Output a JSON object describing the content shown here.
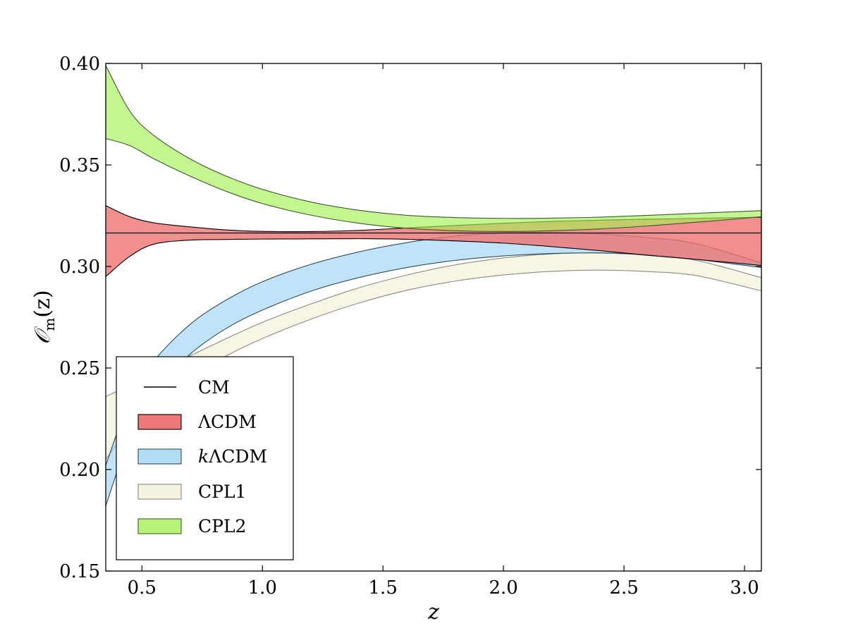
{
  "chart_data": {
    "type": "area",
    "xlabel": "z",
    "ylabel": "𝒪",
    "ylabel_sub": "m",
    "ylabel_tail": "(z)",
    "xlim": [
      0.35,
      3.07
    ],
    "ylim": [
      0.15,
      0.4
    ],
    "xticks": [
      0.5,
      1.0,
      1.5,
      2.0,
      2.5,
      3.0
    ],
    "xtick_labels": [
      "0.5",
      "1.0",
      "1.5",
      "2.0",
      "2.5",
      "3.0"
    ],
    "yticks": [
      0.15,
      0.2,
      0.25,
      0.3,
      0.35,
      0.4
    ],
    "ytick_labels": [
      "0.15",
      "0.20",
      "0.25",
      "0.30",
      "0.35",
      "0.40"
    ],
    "grid": false,
    "legend_position": "lower-left",
    "x": [
      0.35,
      0.45,
      0.55,
      0.7,
      0.85,
      1.0,
      1.2,
      1.4,
      1.6,
      1.8,
      2.0,
      2.2,
      2.4,
      2.6,
      2.8,
      3.07
    ],
    "cm_value": 0.3165,
    "series": [
      {
        "name": "ΛCDM",
        "color": "#ee7272",
        "edge": "#000000",
        "opacity": 0.8,
        "lower": [
          0.295,
          0.305,
          0.311,
          0.313,
          0.3133,
          0.3135,
          0.3136,
          0.3137,
          0.3134,
          0.3126,
          0.3115,
          0.3098,
          0.3078,
          0.3055,
          0.3035,
          0.3005
        ],
        "upper": [
          0.33,
          0.3245,
          0.3215,
          0.3195,
          0.318,
          0.3173,
          0.3172,
          0.3178,
          0.319,
          0.3202,
          0.3213,
          0.3222,
          0.3228,
          0.3233,
          0.3237,
          0.3243
        ]
      },
      {
        "name": "kΛCDM",
        "color": "#9ed4f5",
        "edge": "#2e4a5a",
        "opacity": 0.65,
        "lower": [
          0.182,
          0.2165,
          0.238,
          0.2568,
          0.2695,
          0.2785,
          0.2878,
          0.2945,
          0.2995,
          0.303,
          0.3052,
          0.3064,
          0.3067,
          0.3058,
          0.3035,
          0.2995
        ],
        "upper": [
          0.202,
          0.2345,
          0.2535,
          0.2715,
          0.2835,
          0.2925,
          0.301,
          0.3072,
          0.3118,
          0.315,
          0.3165,
          0.3168,
          0.316,
          0.3142,
          0.3112,
          0.3018
        ]
      },
      {
        "name": "CPL1",
        "color": "#f3f1d9",
        "edge": "#8a8a80",
        "opacity": 0.7,
        "lower": [
          0.205,
          0.2205,
          0.2315,
          0.2455,
          0.256,
          0.2645,
          0.274,
          0.282,
          0.2883,
          0.2928,
          0.2958,
          0.2976,
          0.2982,
          0.2975,
          0.2955,
          0.288
        ],
        "upper": [
          0.236,
          0.2415,
          0.2475,
          0.256,
          0.2645,
          0.2725,
          0.2815,
          0.2895,
          0.2958,
          0.3008,
          0.3042,
          0.3062,
          0.3066,
          0.3055,
          0.303,
          0.2945
        ]
      },
      {
        "name": "CPL2",
        "color": "#a6f055",
        "edge": "#3e5a2c",
        "opacity": 0.65,
        "lower": [
          0.363,
          0.3595,
          0.353,
          0.3445,
          0.337,
          0.331,
          0.3253,
          0.3213,
          0.3188,
          0.3176,
          0.3172,
          0.3176,
          0.3185,
          0.32,
          0.3218,
          0.3245
        ],
        "upper": [
          0.399,
          0.3765,
          0.3645,
          0.353,
          0.3445,
          0.338,
          0.3318,
          0.3277,
          0.3252,
          0.3241,
          0.3237,
          0.3238,
          0.3243,
          0.3252,
          0.3262,
          0.3275
        ]
      }
    ],
    "legend": [
      {
        "label": "CM",
        "kind": "line"
      },
      {
        "label": "ΛCDM",
        "kind": "patch",
        "series": 0
      },
      {
        "label": "kΛCDM",
        "kind": "patch",
        "series": 1
      },
      {
        "label": "CPL1",
        "kind": "patch",
        "series": 2
      },
      {
        "label": "CPL2",
        "kind": "patch",
        "series": 3
      }
    ]
  }
}
